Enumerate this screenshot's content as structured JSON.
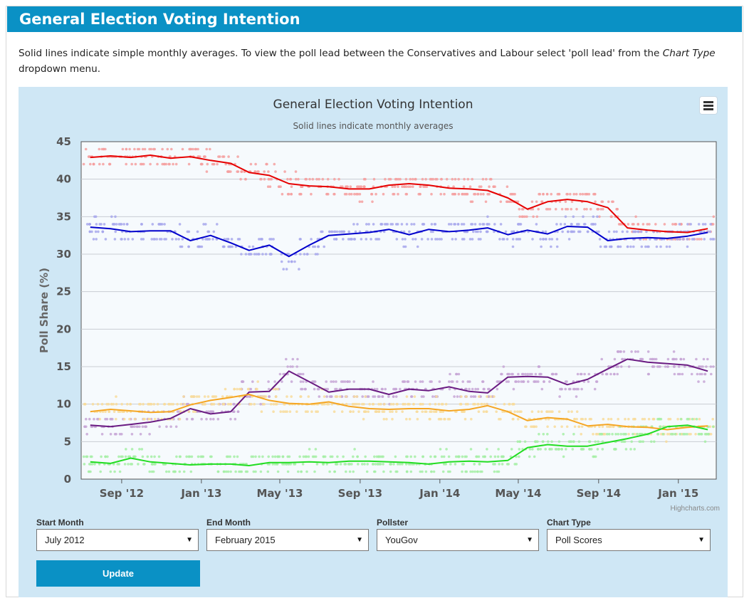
{
  "page": {
    "heading": "General Election Voting Intention",
    "intro_text": "Solid lines indicate simple monthly averages. To view the poll lead between the Conservatives and Labour select 'poll lead' from the ",
    "intro_italic": "Chart Type",
    "intro_end": " dropdown menu."
  },
  "controls": {
    "start_month_label": "Start Month",
    "start_month_value": "July 2012",
    "end_month_label": "End Month",
    "end_month_value": "February 2015",
    "pollster_label": "Pollster",
    "pollster_value": "YouGov",
    "chart_type_label": "Chart Type",
    "chart_type_value": "Poll Scores",
    "update_label": "Update",
    "dropdown_arrow": "▼"
  },
  "chart_data": {
    "type": "line",
    "title": "General Election Voting Intention",
    "subtitle": "Solid lines indicate monthly averages",
    "xlabel": "",
    "ylabel": "Poll Share (%)",
    "credit": "Highcharts.com",
    "ylim": [
      0,
      45
    ],
    "yticks": [
      0,
      5,
      10,
      15,
      20,
      25,
      30,
      35,
      40,
      45
    ],
    "xlim": [
      "2012-07-01",
      "2015-02-28"
    ],
    "xticks": [
      {
        "date": "2012-09-01",
        "label": "Sep '12"
      },
      {
        "date": "2013-01-01",
        "label": "Jan '13"
      },
      {
        "date": "2013-05-01",
        "label": "May '13"
      },
      {
        "date": "2013-09-01",
        "label": "Sep '13"
      },
      {
        "date": "2014-01-01",
        "label": "Jan '14"
      },
      {
        "date": "2014-05-01",
        "label": "May '14"
      },
      {
        "date": "2014-09-01",
        "label": "Sep '14"
      },
      {
        "date": "2015-01-01",
        "label": "Jan '15"
      }
    ],
    "grid": true,
    "legend": "none",
    "x": [
      "2012-07-15",
      "2012-08-15",
      "2012-09-15",
      "2012-10-15",
      "2012-11-15",
      "2012-12-15",
      "2013-01-15",
      "2013-02-15",
      "2013-03-15",
      "2013-04-15",
      "2013-05-15",
      "2013-06-15",
      "2013-07-15",
      "2013-08-15",
      "2013-09-15",
      "2013-10-15",
      "2013-11-15",
      "2013-12-15",
      "2014-01-15",
      "2014-02-15",
      "2014-03-15",
      "2014-04-15",
      "2014-05-15",
      "2014-06-15",
      "2014-07-15",
      "2014-08-15",
      "2014-09-15",
      "2014-10-15",
      "2014-11-15",
      "2014-12-15",
      "2015-01-15",
      "2015-02-15"
    ],
    "series": [
      {
        "color": "#e60000",
        "dot_color": "#f4a0a0",
        "values": [
          42.9,
          43.1,
          42.9,
          43.2,
          42.8,
          43.0,
          42.5,
          42.1,
          40.9,
          40.5,
          39.4,
          39.1,
          39.0,
          38.7,
          38.7,
          39.2,
          39.4,
          39.2,
          38.8,
          38.7,
          38.5,
          37.5,
          36.0,
          37.0,
          37.3,
          37.0,
          36.2,
          33.5,
          33.2,
          33.0,
          32.9,
          33.4
        ]
      },
      {
        "color": "#0000cc",
        "dot_color": "#a8a8ec",
        "values": [
          33.6,
          33.4,
          33.0,
          33.1,
          33.1,
          31.8,
          32.5,
          31.5,
          30.5,
          31.2,
          29.7,
          31.2,
          32.5,
          32.7,
          32.9,
          33.3,
          32.6,
          33.3,
          33.0,
          33.2,
          33.5,
          32.6,
          33.2,
          32.7,
          33.7,
          33.6,
          31.8,
          32.1,
          32.2,
          32.1,
          32.4,
          32.9
        ]
      },
      {
        "color": "#6a1b82",
        "dot_color": "#c7a6d6",
        "values": [
          7.2,
          7.0,
          7.3,
          7.6,
          8.1,
          9.4,
          8.7,
          9.0,
          11.6,
          11.7,
          14.4,
          13.0,
          11.6,
          12.0,
          12.0,
          11.3,
          12.0,
          11.8,
          12.3,
          11.7,
          11.5,
          13.6,
          13.7,
          13.6,
          12.6,
          13.3,
          14.7,
          16.0,
          15.6,
          15.4,
          15.2,
          14.4
        ]
      },
      {
        "color": "#f5a623",
        "dot_color": "#f8dc9c",
        "values": [
          9.0,
          9.3,
          9.1,
          8.9,
          9.0,
          9.9,
          10.5,
          10.9,
          11.3,
          10.5,
          10.1,
          10.0,
          10.3,
          9.7,
          9.4,
          9.3,
          9.4,
          9.4,
          9.1,
          9.3,
          9.8,
          9.0,
          7.8,
          8.2,
          8.0,
          7.1,
          7.3,
          7.0,
          6.9,
          6.6,
          6.9,
          7.1
        ]
      },
      {
        "color": "#22dd22",
        "dot_color": "#a6eea6",
        "values": [
          2.3,
          2.1,
          2.8,
          2.3,
          2.1,
          1.9,
          2.0,
          2.0,
          1.8,
          2.2,
          2.2,
          2.3,
          2.2,
          2.4,
          2.4,
          2.3,
          2.2,
          2.0,
          2.3,
          2.4,
          2.3,
          2.5,
          4.2,
          4.6,
          4.4,
          4.4,
          4.9,
          5.4,
          6.0,
          7.0,
          7.2,
          6.6
        ]
      }
    ]
  }
}
